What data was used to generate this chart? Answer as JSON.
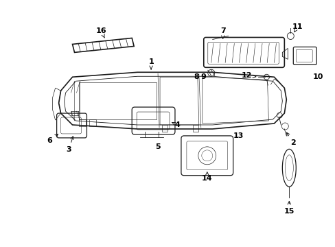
{
  "background_color": "#ffffff",
  "line_color": "#1a1a1a",
  "label_color": "#000000",
  "fig_width": 4.89,
  "fig_height": 3.6,
  "dpi": 100,
  "gray": "#888888",
  "mid_gray": "#555555"
}
